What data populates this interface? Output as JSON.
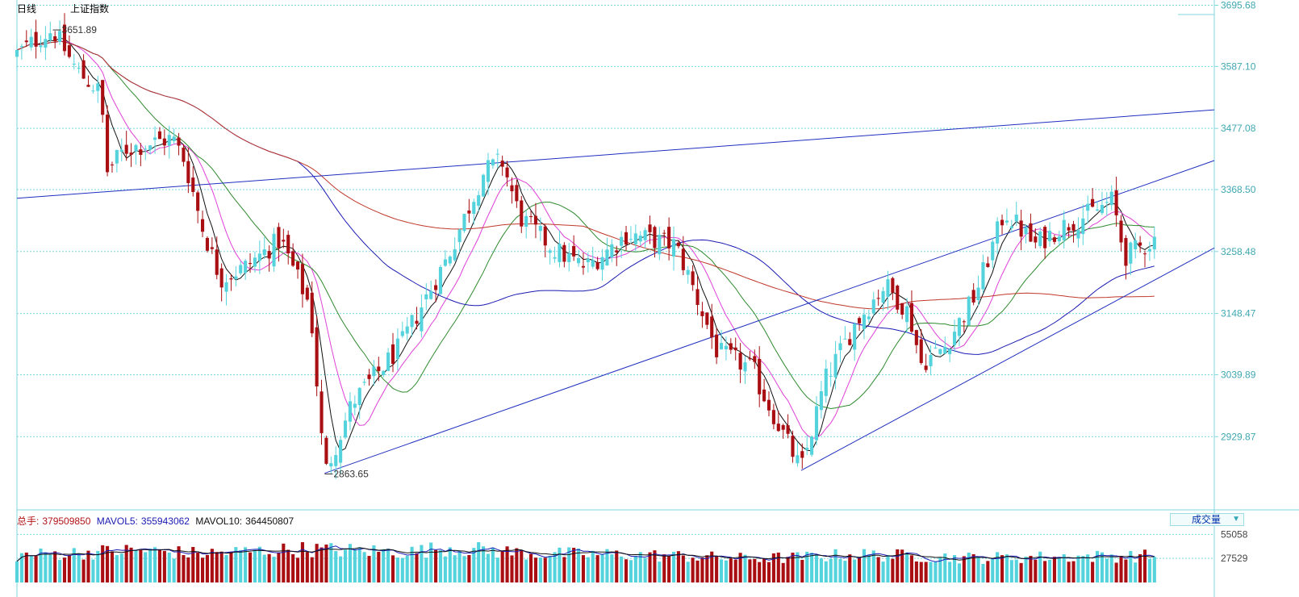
{
  "header": {
    "period": "日线",
    "index_name": "上证指数"
  },
  "colors": {
    "up": "#54d3dc",
    "down": "#a80e12",
    "grid": "#7fd7de",
    "axis_text": "#3fa7b1",
    "ma5": "#111111",
    "ma10": "#e040d8",
    "ma20": "#2e8a2e",
    "ma60": "#1a1ab3",
    "ma120": "#c0392b",
    "trend": "#1f2fbf"
  },
  "price_labels": {
    "high": "3651.89",
    "low": "2863.65"
  },
  "volume_indicators": {
    "total_label": "总手:",
    "total_value": "379509850",
    "mavol5_label": "MAVOL5:",
    "mavol5_value": "355943062",
    "mavol10_label": "MAVOL10:",
    "mavol10_value": "364450807"
  },
  "volume_selector": {
    "label": "成交量",
    "icon": "dropdown-arrow-icon"
  },
  "chart_data": {
    "type": "candlestick",
    "title": "上证指数 日线",
    "y_axis_ticks": [
      "3695.68",
      "3587.10",
      "3477.08",
      "3368.50",
      "3258.48",
      "3148.47",
      "3039.89",
      "2929.87"
    ],
    "ylim": [
      2820,
      3705
    ],
    "volume_axis_ticks": [
      "55058",
      "27529"
    ],
    "volume_ylim": [
      0,
      60000
    ],
    "annotations": [
      {
        "text": "3651.89",
        "type": "high",
        "value": 3651.89
      },
      {
        "text": "2863.65",
        "type": "low",
        "value": 2863.65
      }
    ],
    "moving_averages": [
      "MA5",
      "MA10",
      "MA20",
      "MA60",
      "MA120"
    ],
    "trend_lines": [
      {
        "name": "upper-horizontal-trendline",
        "from": [
          0,
          3353
        ],
        "to": [
          1,
          3510
        ]
      },
      {
        "name": "rising-channel-upper",
        "from": [
          0.257,
          2865
        ],
        "to": [
          1,
          3420
        ]
      },
      {
        "name": "rising-channel-lower",
        "from": [
          0.655,
          2870
        ],
        "to": [
          1,
          3265
        ]
      }
    ],
    "price_path_keypoints": [
      [
        0,
        3610
      ],
      [
        0.02,
        3640
      ],
      [
        0.03,
        3651.89
      ],
      [
        0.05,
        3580
      ],
      [
        0.07,
        3540
      ],
      [
        0.075,
        3400
      ],
      [
        0.09,
        3440
      ],
      [
        0.13,
        3460
      ],
      [
        0.14,
        3420
      ],
      [
        0.155,
        3300
      ],
      [
        0.17,
        3210
      ],
      [
        0.19,
        3230
      ],
      [
        0.22,
        3280
      ],
      [
        0.245,
        3160
      ],
      [
        0.257,
        2863.65
      ],
      [
        0.28,
        2990
      ],
      [
        0.32,
        3090
      ],
      [
        0.36,
        3250
      ],
      [
        0.39,
        3400
      ],
      [
        0.405,
        3420
      ],
      [
        0.42,
        3320
      ],
      [
        0.45,
        3260
      ],
      [
        0.475,
        3230
      ],
      [
        0.51,
        3290
      ],
      [
        0.55,
        3270
      ],
      [
        0.56,
        3220
      ],
      [
        0.585,
        3080
      ],
      [
        0.615,
        3050
      ],
      [
        0.62,
        3020
      ],
      [
        0.655,
        2870
      ],
      [
        0.675,
        3030
      ],
      [
        0.7,
        3130
      ],
      [
        0.725,
        3200
      ],
      [
        0.745,
        3150
      ],
      [
        0.755,
        3060
      ],
      [
        0.775,
        3090
      ],
      [
        0.8,
        3180
      ],
      [
        0.825,
        3330
      ],
      [
        0.85,
        3270
      ],
      [
        0.87,
        3300
      ],
      [
        0.9,
        3330
      ],
      [
        0.915,
        3350
      ],
      [
        0.925,
        3250
      ],
      [
        0.95,
        3280
      ]
    ],
    "volume_level_keypoints": [
      [
        0,
        31000
      ],
      [
        0.1,
        37000
      ],
      [
        0.15,
        33000
      ],
      [
        0.24,
        38000
      ],
      [
        0.33,
        35000
      ],
      [
        0.36,
        40000
      ],
      [
        0.43,
        33000
      ],
      [
        0.5,
        32000
      ],
      [
        0.56,
        30000
      ],
      [
        0.6,
        27500
      ],
      [
        0.65,
        28500
      ],
      [
        0.7,
        32000
      ],
      [
        0.76,
        30000
      ],
      [
        0.8,
        28000
      ],
      [
        0.87,
        29500
      ],
      [
        0.95,
        30500
      ]
    ]
  }
}
